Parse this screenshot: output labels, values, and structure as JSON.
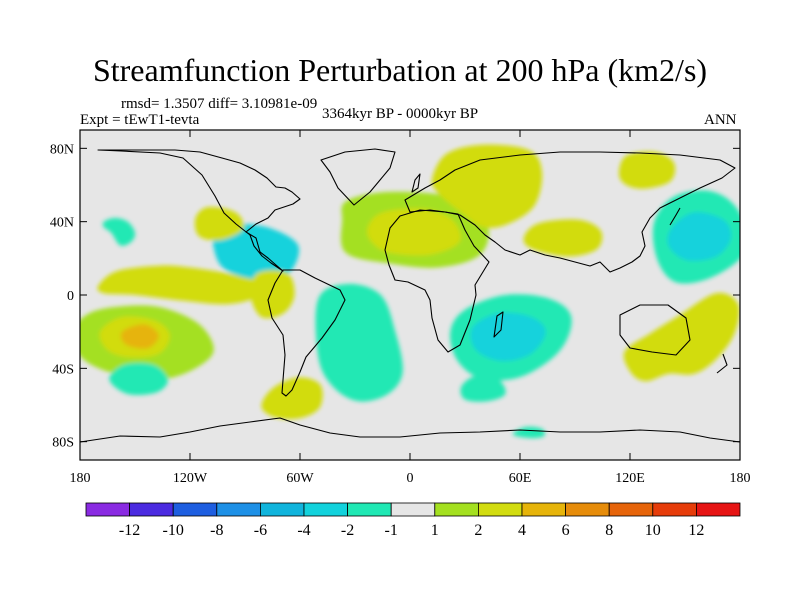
{
  "chart_data": {
    "type": "heatmap",
    "title": "Streamfunction Perturbation at 200 hPa (km2/s)",
    "stats": "rmsd= 1.3507 diff= 3.10981e-09",
    "experiment": "Expt = tEwT1-tevta",
    "period": "3364kyr BP - 0000kyr BP",
    "season": "ANN",
    "xlim": [
      -180,
      180
    ],
    "ylim": [
      -90,
      90
    ],
    "x_ticks": [
      {
        "value": -180,
        "label": "180"
      },
      {
        "value": -120,
        "label": "120W"
      },
      {
        "value": -60,
        "label": "60W"
      },
      {
        "value": 0,
        "label": "0"
      },
      {
        "value": 60,
        "label": "60E"
      },
      {
        "value": 120,
        "label": "120E"
      },
      {
        "value": 180,
        "label": "180"
      }
    ],
    "y_ticks": [
      {
        "value": 80,
        "label": "80N"
      },
      {
        "value": 40,
        "label": "40N"
      },
      {
        "value": 0,
        "label": "0"
      },
      {
        "value": -40,
        "label": "40S"
      },
      {
        "value": -80,
        "label": "80S"
      }
    ],
    "colorbar": {
      "colors": [
        "#8a2be2",
        "#4b2be0",
        "#1e5ee0",
        "#1e90e6",
        "#10b4dc",
        "#12d2dc",
        "#20e8b4",
        "#e6e6e6",
        "#a4e020",
        "#d2dc10",
        "#e6b40a",
        "#e68c0a",
        "#e6640a",
        "#e63c0a",
        "#e61414"
      ],
      "boundaries": [
        "-12",
        "-10",
        "-8",
        "-6",
        "-4",
        "-2",
        "-1",
        "1",
        "2",
        "4",
        "6",
        "8",
        "10",
        "12"
      ]
    },
    "anomalies": [
      {
        "region": "central North Pacific (subtropics)",
        "lon": -158,
        "lat": 34,
        "value": -2
      },
      {
        "region": "eastern North Pacific",
        "lon": -125,
        "lat": 5,
        "value": 2
      },
      {
        "region": "Gulf of Mexico / Caribbean",
        "lon": -85,
        "lat": 25,
        "value": -3
      },
      {
        "region": "southern United States",
        "lon": -105,
        "lat": 38,
        "value": 2
      },
      {
        "region": "western South America",
        "lon": -75,
        "lat": 0,
        "value": 2
      },
      {
        "region": "central South Pacific",
        "lon": -145,
        "lat": -22,
        "value": 5
      },
      {
        "region": "South Pacific (45S)",
        "lon": -148,
        "lat": -46,
        "value": -2
      },
      {
        "region": "southern South America",
        "lon": -63,
        "lat": -57,
        "value": 2
      },
      {
        "region": "South Atlantic",
        "lon": -28,
        "lat": -28,
        "value": -2
      },
      {
        "region": "North Atlantic / Sahara",
        "lon": -5,
        "lat": 33,
        "value": 3
      },
      {
        "region": "Europe / Russia",
        "lon": 40,
        "lat": 67,
        "value": 2
      },
      {
        "region": "South Asia",
        "lon": 82,
        "lat": 31,
        "value": 2
      },
      {
        "region": "Northeast Asia",
        "lon": 128,
        "lat": 68,
        "value": 2
      },
      {
        "region": "western North Pacific",
        "lon": 155,
        "lat": 31,
        "value": -4
      },
      {
        "region": "southern Indian Ocean",
        "lon": 48,
        "lat": -22,
        "value": -4
      },
      {
        "region": "Southern Ocean (50S)",
        "lon": 40,
        "lat": -52,
        "value": -2
      },
      {
        "region": "Australia / Southwest Pacific",
        "lon": 145,
        "lat": -25,
        "value": 2
      },
      {
        "region": "Antarctic coast",
        "lon": 65,
        "lat": -75,
        "value": -2
      }
    ]
  }
}
